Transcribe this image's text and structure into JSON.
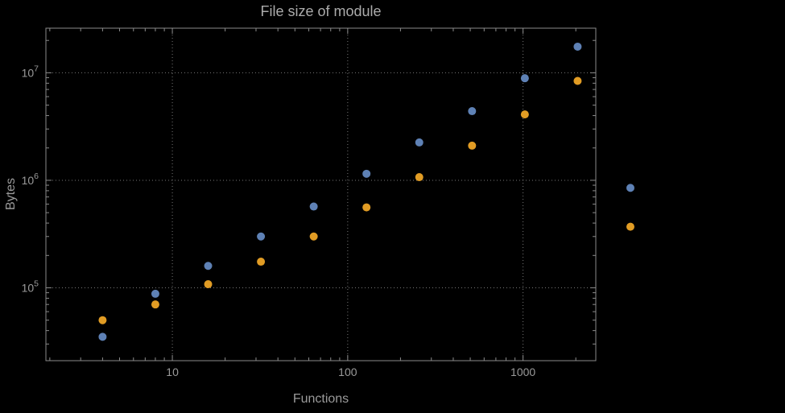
{
  "chart_data": {
    "type": "scatter",
    "title": "File size of module",
    "xlabel": "Functions",
    "ylabel": "Bytes",
    "x_scale": "log",
    "y_scale": "log",
    "grid": "dotted",
    "legend": "none",
    "x_range": [
      1.9,
      2600
    ],
    "y_range": [
      21000,
      26000000
    ],
    "x_ticks": [
      10,
      100,
      1000
    ],
    "x_tick_labels": [
      "10",
      "100",
      "1000"
    ],
    "y_tick_base": "10",
    "y_tick_exponents": [
      5,
      6,
      7
    ],
    "x": [
      4,
      8,
      16,
      32,
      64,
      128,
      256,
      512,
      1024,
      2048,
      4096
    ],
    "series": [
      {
        "name": "blue",
        "color": "#5e81b5",
        "values": [
          35000,
          88000,
          160000,
          300000,
          570000,
          1150000,
          2250000,
          4400000,
          8900000,
          17500000,
          850000
        ]
      },
      {
        "name": "orange",
        "color": "#e19c24",
        "values": [
          50000,
          70000,
          108000,
          175000,
          300000,
          560000,
          1070000,
          2100000,
          4100000,
          8400000,
          370000
        ]
      }
    ]
  },
  "colors": {
    "background": "#000000",
    "frame": "#8a8a8a",
    "grid": "#777777",
    "tick": "#8a8a8a",
    "tick_text": "#9a9a9a",
    "title_text": "#ababab"
  }
}
